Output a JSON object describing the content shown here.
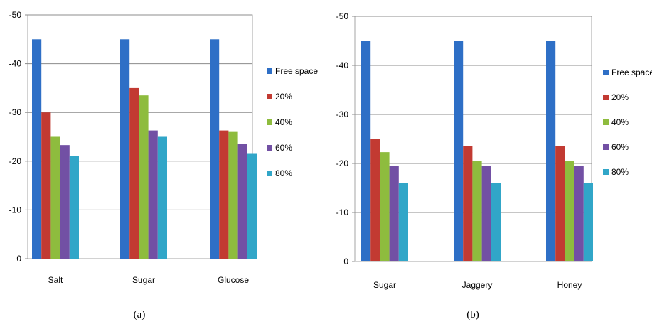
{
  "colors": [
    "#2e6fc6",
    "#c23a32",
    "#8ebc3e",
    "#7250a4",
    "#31a6c8"
  ],
  "chart_data": [
    {
      "type": "bar",
      "caption": "(a)",
      "categories": [
        "Salt",
        "Sugar",
        "Glucose"
      ],
      "ylim": [
        0,
        -50
      ],
      "yticks": [
        "0",
        "-10",
        "-20",
        "-30",
        "-40",
        "-50"
      ],
      "ytick_values": [
        0,
        -10,
        -20,
        -30,
        -40,
        -50
      ],
      "grid": true,
      "legend_position": "right",
      "series": [
        {
          "name": "Free space",
          "values": [
            -45,
            -45,
            -45
          ]
        },
        {
          "name": "20%",
          "values": [
            -30,
            -35,
            -26.3
          ]
        },
        {
          "name": "40%",
          "values": [
            -25,
            -33.5,
            -26
          ]
        },
        {
          "name": "60%",
          "values": [
            -23.3,
            -26.3,
            -23.5
          ]
        },
        {
          "name": "80%",
          "values": [
            -21,
            -25,
            -21.5
          ]
        }
      ]
    },
    {
      "type": "bar",
      "caption": "(b)",
      "categories": [
        "Sugar",
        "Jaggery",
        "Honey"
      ],
      "ylim": [
        0,
        -50
      ],
      "yticks": [
        "0",
        "-10",
        "-20",
        "-30",
        "-40",
        "-50"
      ],
      "ytick_values": [
        0,
        -10,
        -20,
        -30,
        -40,
        -50
      ],
      "grid": true,
      "legend_position": "right",
      "series": [
        {
          "name": "Free space",
          "values": [
            -45,
            -45,
            -45
          ]
        },
        {
          "name": "20%",
          "values": [
            -25,
            -23.5,
            -23.5
          ]
        },
        {
          "name": "40%",
          "values": [
            -22.3,
            -20.5,
            -20.5
          ]
        },
        {
          "name": "60%",
          "values": [
            -19.5,
            -19.5,
            -19.5
          ]
        },
        {
          "name": "80%",
          "values": [
            -16,
            -16,
            -16
          ]
        }
      ]
    }
  ]
}
